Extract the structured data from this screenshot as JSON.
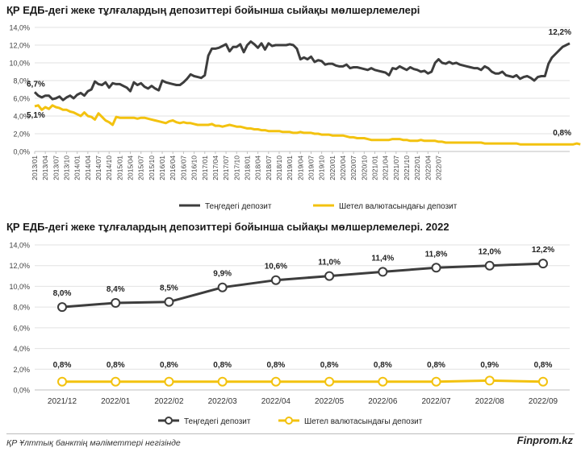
{
  "colors": {
    "dark": "#3d3d3d",
    "gold": "#f3c20f",
    "grid": "#e2e2e2",
    "axis": "#bfbfbf"
  },
  "footer": {
    "source": "ҚР Ұлттық банктің мәліметтері негізінде",
    "brand": "Finprom.kz"
  },
  "chart_data": [
    {
      "type": "line",
      "title": "ҚР ЕДБ-дегі жеке тұлғалардың депозиттері бойынша сыйақы мөлшерлемелері",
      "ylim": [
        0,
        14
      ],
      "ytick_labels": [
        "0,0%",
        "2,0%",
        "4,0%",
        "6,0%",
        "8,0%",
        "10,0%",
        "12,0%",
        "14,0%"
      ],
      "grid": true,
      "legend": "bottom-center",
      "x_tick_labels": [
        "2013/01",
        "2013/04",
        "2013/07",
        "2013/10",
        "2014/01",
        "2014/04",
        "2014/07",
        "2014/10",
        "2015/01",
        "2015/04",
        "2015/07",
        "2015/10",
        "2016/01",
        "2016/04",
        "2016/07",
        "2016/10",
        "2017/01",
        "2017/04",
        "2017/07",
        "2017/10",
        "2018/01",
        "2018/04",
        "2018/07",
        "2018/10",
        "2019/01",
        "2019/04",
        "2019/07",
        "2019/10",
        "2020/01",
        "2020/04",
        "2020/07",
        "2020/10",
        "2021/01",
        "2021/04",
        "2021/07",
        "2021/10",
        "2022/01",
        "2022/04",
        "2022/07"
      ],
      "series": [
        {
          "name": "Теңгедегі депозит",
          "color": "#3d3d3d",
          "values": [
            6.7,
            6.3,
            6.1,
            6.3,
            6.3,
            5.9,
            6.0,
            6.2,
            5.8,
            6.1,
            6.3,
            6.0,
            6.4,
            6.6,
            6.3,
            6.8,
            7.0,
            7.9,
            7.6,
            7.5,
            7.8,
            7.2,
            7.7,
            7.6,
            7.6,
            7.4,
            7.2,
            6.8,
            7.8,
            7.5,
            7.7,
            7.3,
            7.1,
            7.4,
            7.1,
            6.9,
            8.0,
            7.8,
            7.7,
            7.6,
            7.5,
            7.5,
            7.8,
            8.2,
            8.7,
            8.5,
            8.4,
            8.3,
            8.6,
            10.8,
            11.6,
            11.6,
            11.7,
            11.9,
            12.1,
            11.3,
            11.8,
            11.8,
            12.1,
            11.2,
            12.0,
            12.4,
            12.1,
            11.7,
            12.2,
            11.5,
            12.2,
            11.9,
            12.0,
            12.0,
            12.0,
            12.0,
            12.1,
            12.0,
            11.6,
            10.4,
            10.6,
            10.4,
            10.7,
            10.1,
            10.3,
            10.2,
            9.8,
            9.9,
            9.9,
            9.7,
            9.6,
            9.6,
            9.8,
            9.4,
            9.5,
            9.5,
            9.4,
            9.3,
            9.2,
            9.4,
            9.2,
            9.1,
            9.0,
            8.9,
            8.6,
            9.4,
            9.3,
            9.6,
            9.4,
            9.2,
            9.5,
            9.3,
            9.2,
            9.0,
            9.1,
            8.8,
            9.0,
            10.0,
            10.4,
            10.0,
            9.9,
            10.1,
            9.9,
            10.0,
            9.8,
            9.7,
            9.6,
            9.5,
            9.4,
            9.4,
            9.2,
            9.6,
            9.4,
            9.0,
            8.8,
            8.8,
            9.0,
            8.6,
            8.5,
            8.4,
            8.6,
            8.2,
            8.4,
            8.5,
            8.3,
            8.0,
            8.4,
            8.5,
            8.5,
            9.9,
            10.6,
            11.0,
            11.4,
            11.8,
            12.0,
            12.2
          ],
          "start_label": "6,7%",
          "end_label": "12,2%"
        },
        {
          "name": "Шетел валютасындағы депозит",
          "color": "#f3c20f",
          "values": [
            5.1,
            5.2,
            4.7,
            5.0,
            4.8,
            5.2,
            5.0,
            4.9,
            4.7,
            4.7,
            4.5,
            4.4,
            4.2,
            4.0,
            4.4,
            4.0,
            3.9,
            3.6,
            4.3,
            3.9,
            3.5,
            3.3,
            3.0,
            3.9,
            3.8,
            3.8,
            3.8,
            3.8,
            3.8,
            3.7,
            3.8,
            3.8,
            3.7,
            3.6,
            3.5,
            3.4,
            3.3,
            3.2,
            3.4,
            3.5,
            3.3,
            3.2,
            3.3,
            3.2,
            3.2,
            3.1,
            3.0,
            3.0,
            3.0,
            3.0,
            3.1,
            2.9,
            2.9,
            2.8,
            2.9,
            3.0,
            2.9,
            2.8,
            2.8,
            2.7,
            2.6,
            2.6,
            2.5,
            2.5,
            2.4,
            2.4,
            2.3,
            2.3,
            2.3,
            2.3,
            2.2,
            2.2,
            2.2,
            2.1,
            2.1,
            2.2,
            2.1,
            2.1,
            2.1,
            2.0,
            2.0,
            1.9,
            1.9,
            1.9,
            1.8,
            1.8,
            1.8,
            1.8,
            1.7,
            1.6,
            1.6,
            1.5,
            1.5,
            1.5,
            1.4,
            1.3,
            1.3,
            1.3,
            1.3,
            1.3,
            1.3,
            1.4,
            1.4,
            1.4,
            1.3,
            1.3,
            1.2,
            1.2,
            1.2,
            1.3,
            1.2,
            1.2,
            1.2,
            1.2,
            1.1,
            1.1,
            1.0,
            1.0,
            1.0,
            1.0,
            1.0,
            1.0,
            1.0,
            1.0,
            1.0,
            1.0,
            1.0,
            0.9,
            0.9,
            0.9,
            0.9,
            0.9,
            0.9,
            0.9,
            0.9,
            0.9,
            0.9,
            0.8,
            0.8,
            0.8,
            0.8,
            0.8,
            0.8,
            0.8,
            0.8,
            0.8,
            0.8,
            0.8,
            0.8,
            0.8,
            0.8,
            0.8,
            0.8,
            0.9,
            0.8
          ],
          "start_label": "5,1%",
          "end_label": "0,8%"
        }
      ]
    },
    {
      "type": "line",
      "title": "ҚР ЕДБ-дегі жеке тұлғалардың депозиттері бойынша сыйақы мөлшерлемелері. 2022",
      "ylim": [
        0,
        14
      ],
      "ytick_labels": [
        "0,0%",
        "2,0%",
        "4,0%",
        "6,0%",
        "8,0%",
        "10,0%",
        "12,0%",
        "14,0%"
      ],
      "grid": true,
      "legend": "bottom-center",
      "categories": [
        "2021/12",
        "2022/01",
        "2022/02",
        "2022/03",
        "2022/04",
        "2022/05",
        "2022/06",
        "2022/07",
        "2022/08",
        "2022/09"
      ],
      "series": [
        {
          "name": "Теңгедегі депозит",
          "color": "#3d3d3d",
          "values": [
            8.0,
            8.4,
            8.5,
            9.9,
            10.6,
            11.0,
            11.4,
            11.8,
            12.0,
            12.2
          ],
          "labels": [
            "8,0%",
            "8,4%",
            "8,5%",
            "9,9%",
            "10,6%",
            "11,0%",
            "11,4%",
            "11,8%",
            "12,0%",
            "12,2%"
          ]
        },
        {
          "name": "Шетел валютасындағы депозит",
          "color": "#f3c20f",
          "values": [
            0.8,
            0.8,
            0.8,
            0.8,
            0.8,
            0.8,
            0.8,
            0.8,
            0.9,
            0.8
          ],
          "labels": [
            "0,8%",
            "0,8%",
            "0,8%",
            "0,8%",
            "0,8%",
            "0,8%",
            "0,8%",
            "0,8%",
            "0,9%",
            "0,8%"
          ]
        }
      ]
    }
  ]
}
